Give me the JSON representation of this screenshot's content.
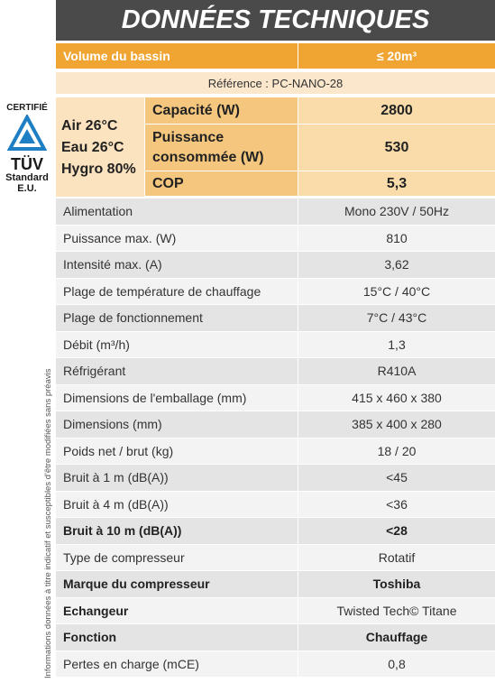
{
  "header": {
    "title": "DONNÉES TECHNIQUES"
  },
  "volume": {
    "label": "Volume du bassin",
    "value": "≤ 20m³"
  },
  "reference": "Référence : PC-NANO-28",
  "conditions": [
    "Air 26°C",
    "Eau 26°C",
    "Hygro 80%"
  ],
  "performance": [
    {
      "label": "Capacité (W)",
      "value": "2800"
    },
    {
      "label": "Puissance consommée (W)",
      "value": "530"
    },
    {
      "label": "COP",
      "value": "5,3"
    }
  ],
  "logo": {
    "certified": "CERTIFIÉ",
    "brand": "TÜV",
    "standard": "Standard",
    "region": "E.U."
  },
  "side_note": "Informations données à titre indicatif et susceptibles d'être modifiées sans préavis",
  "table": {
    "rows": [
      {
        "label": "Alimentation",
        "value": "Mono 230V / 50Hz",
        "bold_label": false,
        "bold_value": false
      },
      {
        "label": "Puissance max. (W)",
        "value": "810",
        "bold_label": false,
        "bold_value": false
      },
      {
        "label": "Intensité max. (A)",
        "value": "3,62",
        "bold_label": false,
        "bold_value": false
      },
      {
        "label": "Plage de température de chauffage",
        "value": "15°C / 40°C",
        "bold_label": false,
        "bold_value": false
      },
      {
        "label": "Plage de fonctionnement",
        "value": "7°C / 43°C",
        "bold_label": false,
        "bold_value": false
      },
      {
        "label": "Débit (m³/h)",
        "value": "1,3",
        "bold_label": false,
        "bold_value": false
      },
      {
        "label": "Réfrigérant",
        "value": "R410A",
        "bold_label": false,
        "bold_value": false
      },
      {
        "label": "Dimensions de l'emballage (mm)",
        "value": "415 x 460 x 380",
        "bold_label": false,
        "bold_value": false
      },
      {
        "label": "Dimensions (mm)",
        "value": "385 x 400 x 280",
        "bold_label": false,
        "bold_value": false
      },
      {
        "label": "Poids net / brut (kg)",
        "value": "18 / 20",
        "bold_label": false,
        "bold_value": false
      },
      {
        "label": "Bruit à 1 m (dB(A))",
        "value": "<45",
        "bold_label": false,
        "bold_value": false
      },
      {
        "label": "Bruit à 4 m (dB(A))",
        "value": "<36",
        "bold_label": false,
        "bold_value": false
      },
      {
        "label": "Bruit à 10 m (dB(A))",
        "value": "<28",
        "bold_label": true,
        "bold_value": true
      },
      {
        "label": "Type de compresseur",
        "value": "Rotatif",
        "bold_label": false,
        "bold_value": false
      },
      {
        "label": "Marque du compresseur",
        "value": "Toshiba",
        "bold_label": true,
        "bold_value": true
      },
      {
        "label": "Echangeur",
        "value": "Twisted Tech© Titane",
        "bold_label": true,
        "bold_value": false
      },
      {
        "label": "Fonction",
        "value": "Chauffage",
        "bold_label": true,
        "bold_value": true
      },
      {
        "label": "Pertes en charge (mCE)",
        "value": "0,8",
        "bold_label": false,
        "bold_value": false
      }
    ]
  }
}
